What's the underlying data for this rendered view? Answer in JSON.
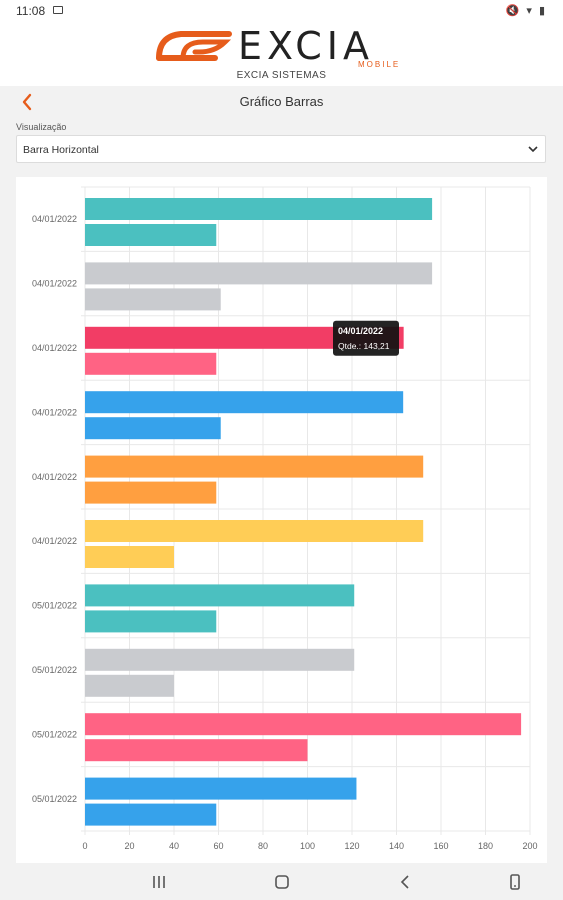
{
  "status_bar": {
    "time": "11:08"
  },
  "brand": {
    "word": "EXCIA",
    "tagline": "MOBILE",
    "subtitle": "EXCIA SISTEMAS",
    "accent": "#e65c1b"
  },
  "appbar": {
    "title": "Gráfico Barras"
  },
  "visualization": {
    "label": "Visualização",
    "selected": "Barra Horizontal"
  },
  "tooltip": {
    "title": "04/01/2022",
    "body": "Qtde.: 143,21"
  },
  "chart_data": {
    "type": "bar",
    "orientation": "horizontal",
    "categories": [
      "04/01/2022",
      "04/01/2022",
      "04/01/2022",
      "04/01/2022",
      "04/01/2022",
      "04/01/2022",
      "05/01/2022",
      "05/01/2022",
      "05/01/2022",
      "05/01/2022"
    ],
    "series": [
      {
        "values": [
          156,
          156,
          143.21,
          143,
          152,
          152,
          121,
          121,
          196,
          122
        ]
      },
      {
        "values": [
          59,
          61,
          59,
          61,
          59,
          40,
          59,
          40,
          100,
          59
        ]
      }
    ],
    "colors": [
      "#4bc0c0",
      "#c9cbcf",
      "#ff6384",
      "#36a2eb",
      "#ff9f40",
      "#ffcd56",
      "#4bc0c0",
      "#c9cbcf",
      "#ff6384",
      "#36a2eb"
    ],
    "highlight": {
      "index": 2,
      "color": "#f23d65"
    },
    "xlim": [
      0,
      200
    ],
    "xticks": [
      0,
      20,
      40,
      60,
      80,
      100,
      120,
      140,
      160,
      180,
      200
    ],
    "grid": true
  }
}
